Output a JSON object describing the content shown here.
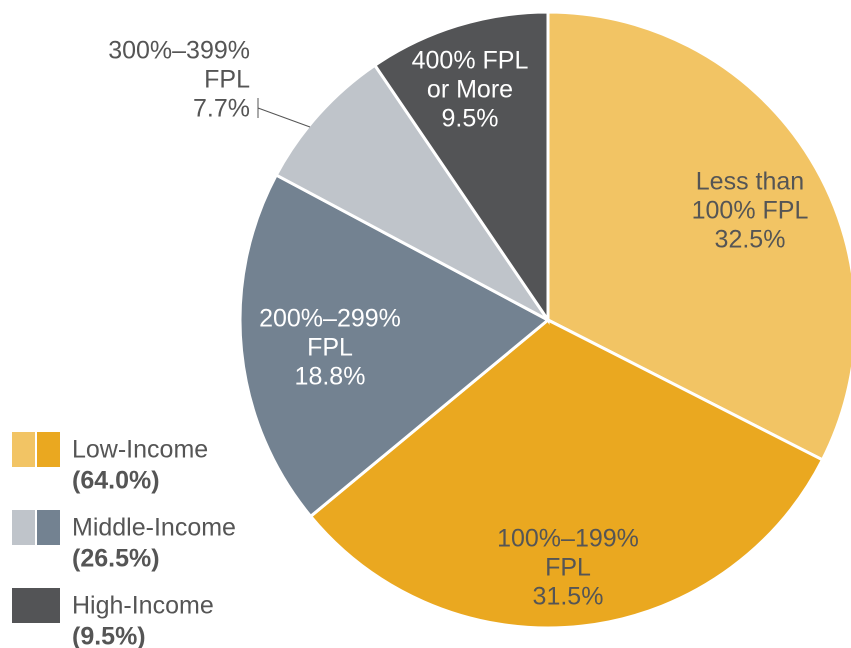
{
  "chart_data": {
    "type": "pie",
    "categories": [
      [
        "Less than",
        "100% FPL"
      ],
      [
        "100%–199%",
        "FPL"
      ],
      [
        "200%–299%",
        "FPL"
      ],
      [
        "300%–399%",
        "FPL"
      ],
      [
        "400% FPL",
        "or More"
      ]
    ],
    "values": [
      32.5,
      31.5,
      18.8,
      7.7,
      9.5
    ],
    "value_labels": [
      "32.5%",
      "31.5%",
      "18.8%",
      "7.7%",
      "9.5%"
    ],
    "colors": [
      "#f2c464",
      "#eaa820",
      "#738291",
      "#bfc4ca",
      "#535456"
    ],
    "label_colors": [
      "#555555",
      "#555555",
      "#ffffff",
      "#555555",
      "#ffffff"
    ],
    "legend": [
      {
        "label": "Low-Income",
        "share": "(64.0%)",
        "colors": [
          "#f2c464",
          "#eaa820"
        ]
      },
      {
        "label": "Middle-Income",
        "share": "(26.5%)",
        "colors": [
          "#bfc4ca",
          "#738291"
        ]
      },
      {
        "label": "High-Income",
        "share": "(9.5%)",
        "colors": [
          "#535456"
        ]
      }
    ]
  }
}
